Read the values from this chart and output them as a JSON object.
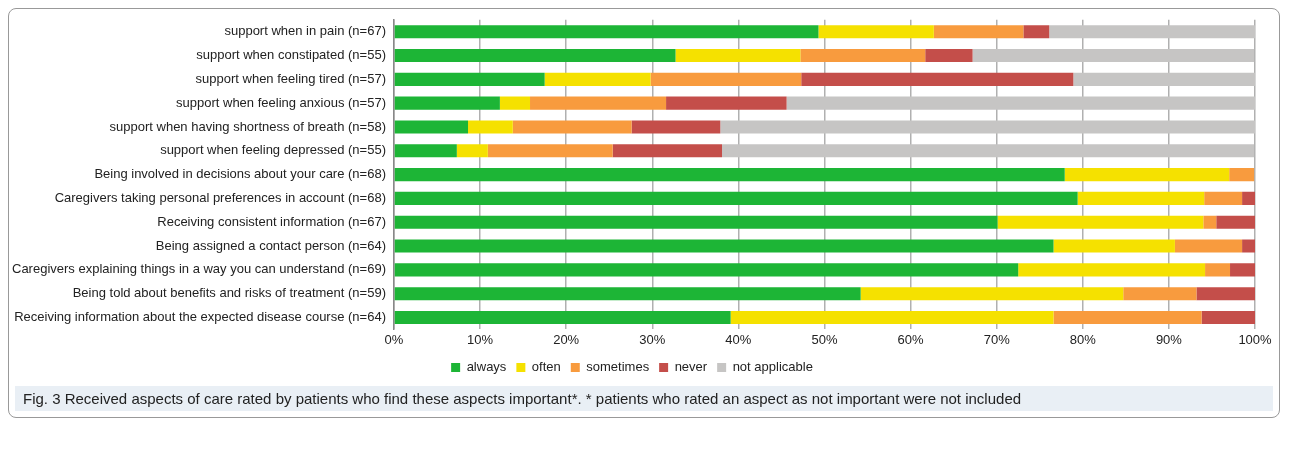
{
  "chart_data": {
    "type": "bar",
    "orientation": "horizontal",
    "stacked": true,
    "categories": [
      "support when in pain (n=67)",
      "support when constipated (n=55)",
      "support when feeling tired (n=57)",
      "support when feeling anxious (n=57)",
      "support when having shortness of breath (n=58)",
      "support when feeling depressed (n=55)",
      "Being involved in decisions about your care (n=68)",
      "Caregivers taking personal preferences in account (n=68)",
      "Receiving consistent information (n=67)",
      "Being assigned a contact person (n=64)",
      "Caregivers explaining things in a way you can understand (n=69)",
      "Being told about benefits and risks of treatment (n=59)",
      "Receiving information about the expected disease course (n=64)"
    ],
    "series": [
      {
        "name": "always",
        "color": "#1db536",
        "values": [
          49.3,
          32.7,
          17.5,
          12.3,
          8.6,
          7.3,
          77.9,
          79.4,
          70.1,
          76.6,
          72.5,
          54.2,
          39.1
        ]
      },
      {
        "name": "often",
        "color": "#f5e100",
        "values": [
          13.4,
          14.5,
          12.3,
          3.5,
          5.2,
          3.6,
          19.1,
          14.7,
          23.9,
          14.1,
          21.7,
          30.5,
          37.5
        ]
      },
      {
        "name": "sometimes",
        "color": "#f89b3e",
        "values": [
          10.4,
          14.5,
          17.5,
          15.8,
          13.8,
          14.5,
          2.9,
          4.4,
          1.5,
          7.8,
          2.9,
          8.5,
          17.2
        ]
      },
      {
        "name": "never",
        "color": "#c44e4a",
        "values": [
          3.0,
          5.5,
          31.6,
          14.0,
          10.3,
          12.7,
          0,
          1.5,
          4.5,
          1.6,
          2.9,
          6.8,
          6.3
        ]
      },
      {
        "name": "not applicable",
        "color": "#c6c5c4",
        "values": [
          23.9,
          32.7,
          21.1,
          54.4,
          62.1,
          61.8,
          0,
          0,
          0,
          0,
          0,
          0,
          0
        ]
      }
    ],
    "xlim": [
      0,
      100
    ],
    "xticks": [
      {
        "value": 0,
        "label": "0%"
      },
      {
        "value": 10,
        "label": "10%"
      },
      {
        "value": 20,
        "label": "20%"
      },
      {
        "value": 30,
        "label": "30%"
      },
      {
        "value": 40,
        "label": "40%"
      },
      {
        "value": 50,
        "label": "50%"
      },
      {
        "value": 60,
        "label": "60%"
      },
      {
        "value": 70,
        "label": "70%"
      },
      {
        "value": 80,
        "label": "80%"
      },
      {
        "value": 90,
        "label": "90%"
      },
      {
        "value": 100,
        "label": "100%"
      }
    ],
    "grid": "x",
    "legend": "bottom",
    "annotations": [
      "Fig. 3 Received aspects of care rated by patients who find these aspects important*. * patients who rated an aspect as not important were not included"
    ]
  }
}
